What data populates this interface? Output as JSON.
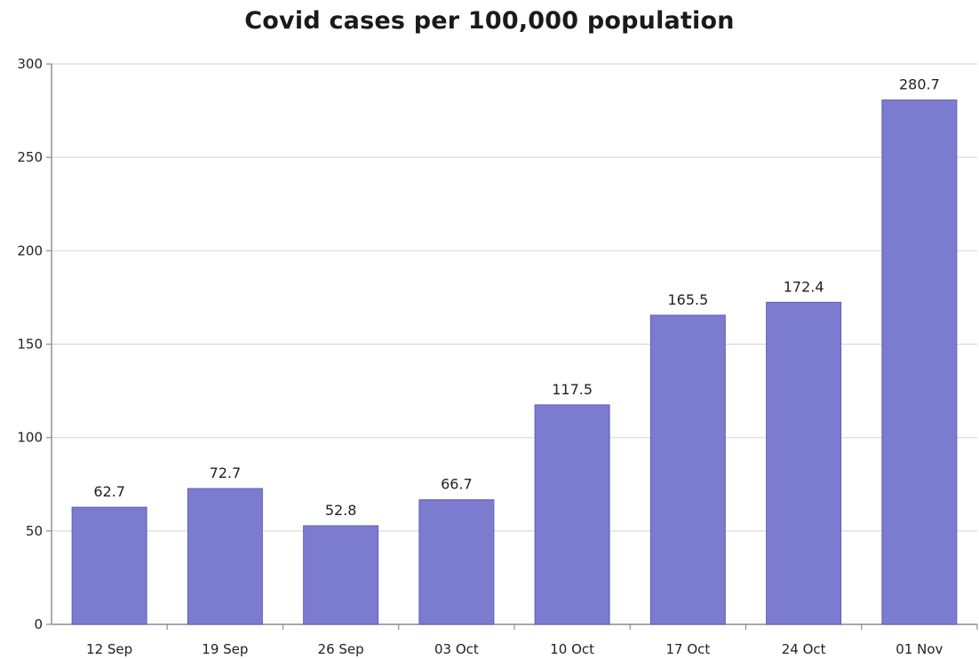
{
  "chart_data": {
    "type": "bar",
    "title": "Covid cases per 100,000 population",
    "xlabel": "",
    "ylabel": "",
    "categories": [
      "12 Sep",
      "19 Sep",
      "26 Sep",
      "03 Oct",
      "10 Oct",
      "17 Oct",
      "24 Oct",
      "01 Nov"
    ],
    "values": [
      62.7,
      72.7,
      52.8,
      66.7,
      117.5,
      165.5,
      172.4,
      280.7
    ],
    "value_labels": [
      "62.7",
      "72.7",
      "52.8",
      "66.7",
      "117.5",
      "165.5",
      "172.4",
      "280.7"
    ],
    "ylim": [
      0,
      300
    ],
    "yticks": [
      0,
      50,
      100,
      150,
      200,
      250,
      300
    ],
    "grid": true,
    "legend": "none",
    "bar_color": "#7b7bd0",
    "bar_edge_color": "#5f5fb8",
    "grid_color": "#d9d9d9",
    "axis_color": "#8c8c8c"
  }
}
